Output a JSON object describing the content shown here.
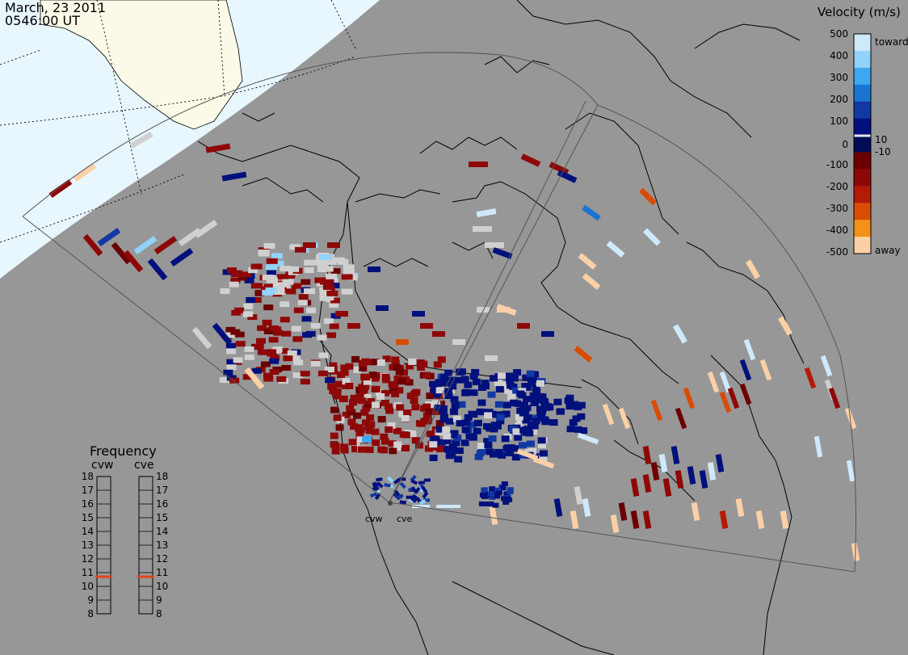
{
  "header": {
    "date": "March, 23 2011",
    "time": "0546:00 UT"
  },
  "colorbar": {
    "title": "Velocity (m/s)",
    "ticks": [
      "500",
      "400",
      "300",
      "200",
      "100",
      "10",
      "0",
      "-10",
      "-100",
      "-200",
      "-300",
      "-400",
      "-500"
    ],
    "toward_label": "toward",
    "away_label": "away",
    "colors": [
      "#cfe9fb",
      "#92d3fa",
      "#3ea7ef",
      "#1a74d1",
      "#1238a2",
      "#00107c",
      "#000c56",
      "#6c0000",
      "#8f0808",
      "#b51a06",
      "#d94c04",
      "#f39119",
      "#fcd0a7"
    ],
    "ground_scatter_color": "#d0d0d0"
  },
  "frequency_panel": {
    "title": "Frequency",
    "radar_a": "cvw",
    "radar_b": "cve",
    "scale": [
      "18",
      "17",
      "16",
      "15",
      "14",
      "13",
      "12",
      "11",
      "10",
      "9",
      "8"
    ],
    "cvw_frequency_mhz": 10.7,
    "cve_frequency_mhz": 10.7,
    "marker_color": "#e0461a"
  },
  "radar_labels": {
    "west": "cvw",
    "east": "cve"
  },
  "map_colors": {
    "background": "#979797",
    "daylight_region": "#e8f6fe",
    "land_in_daylight": "#fbf9e8",
    "coastline": "#000000"
  }
}
